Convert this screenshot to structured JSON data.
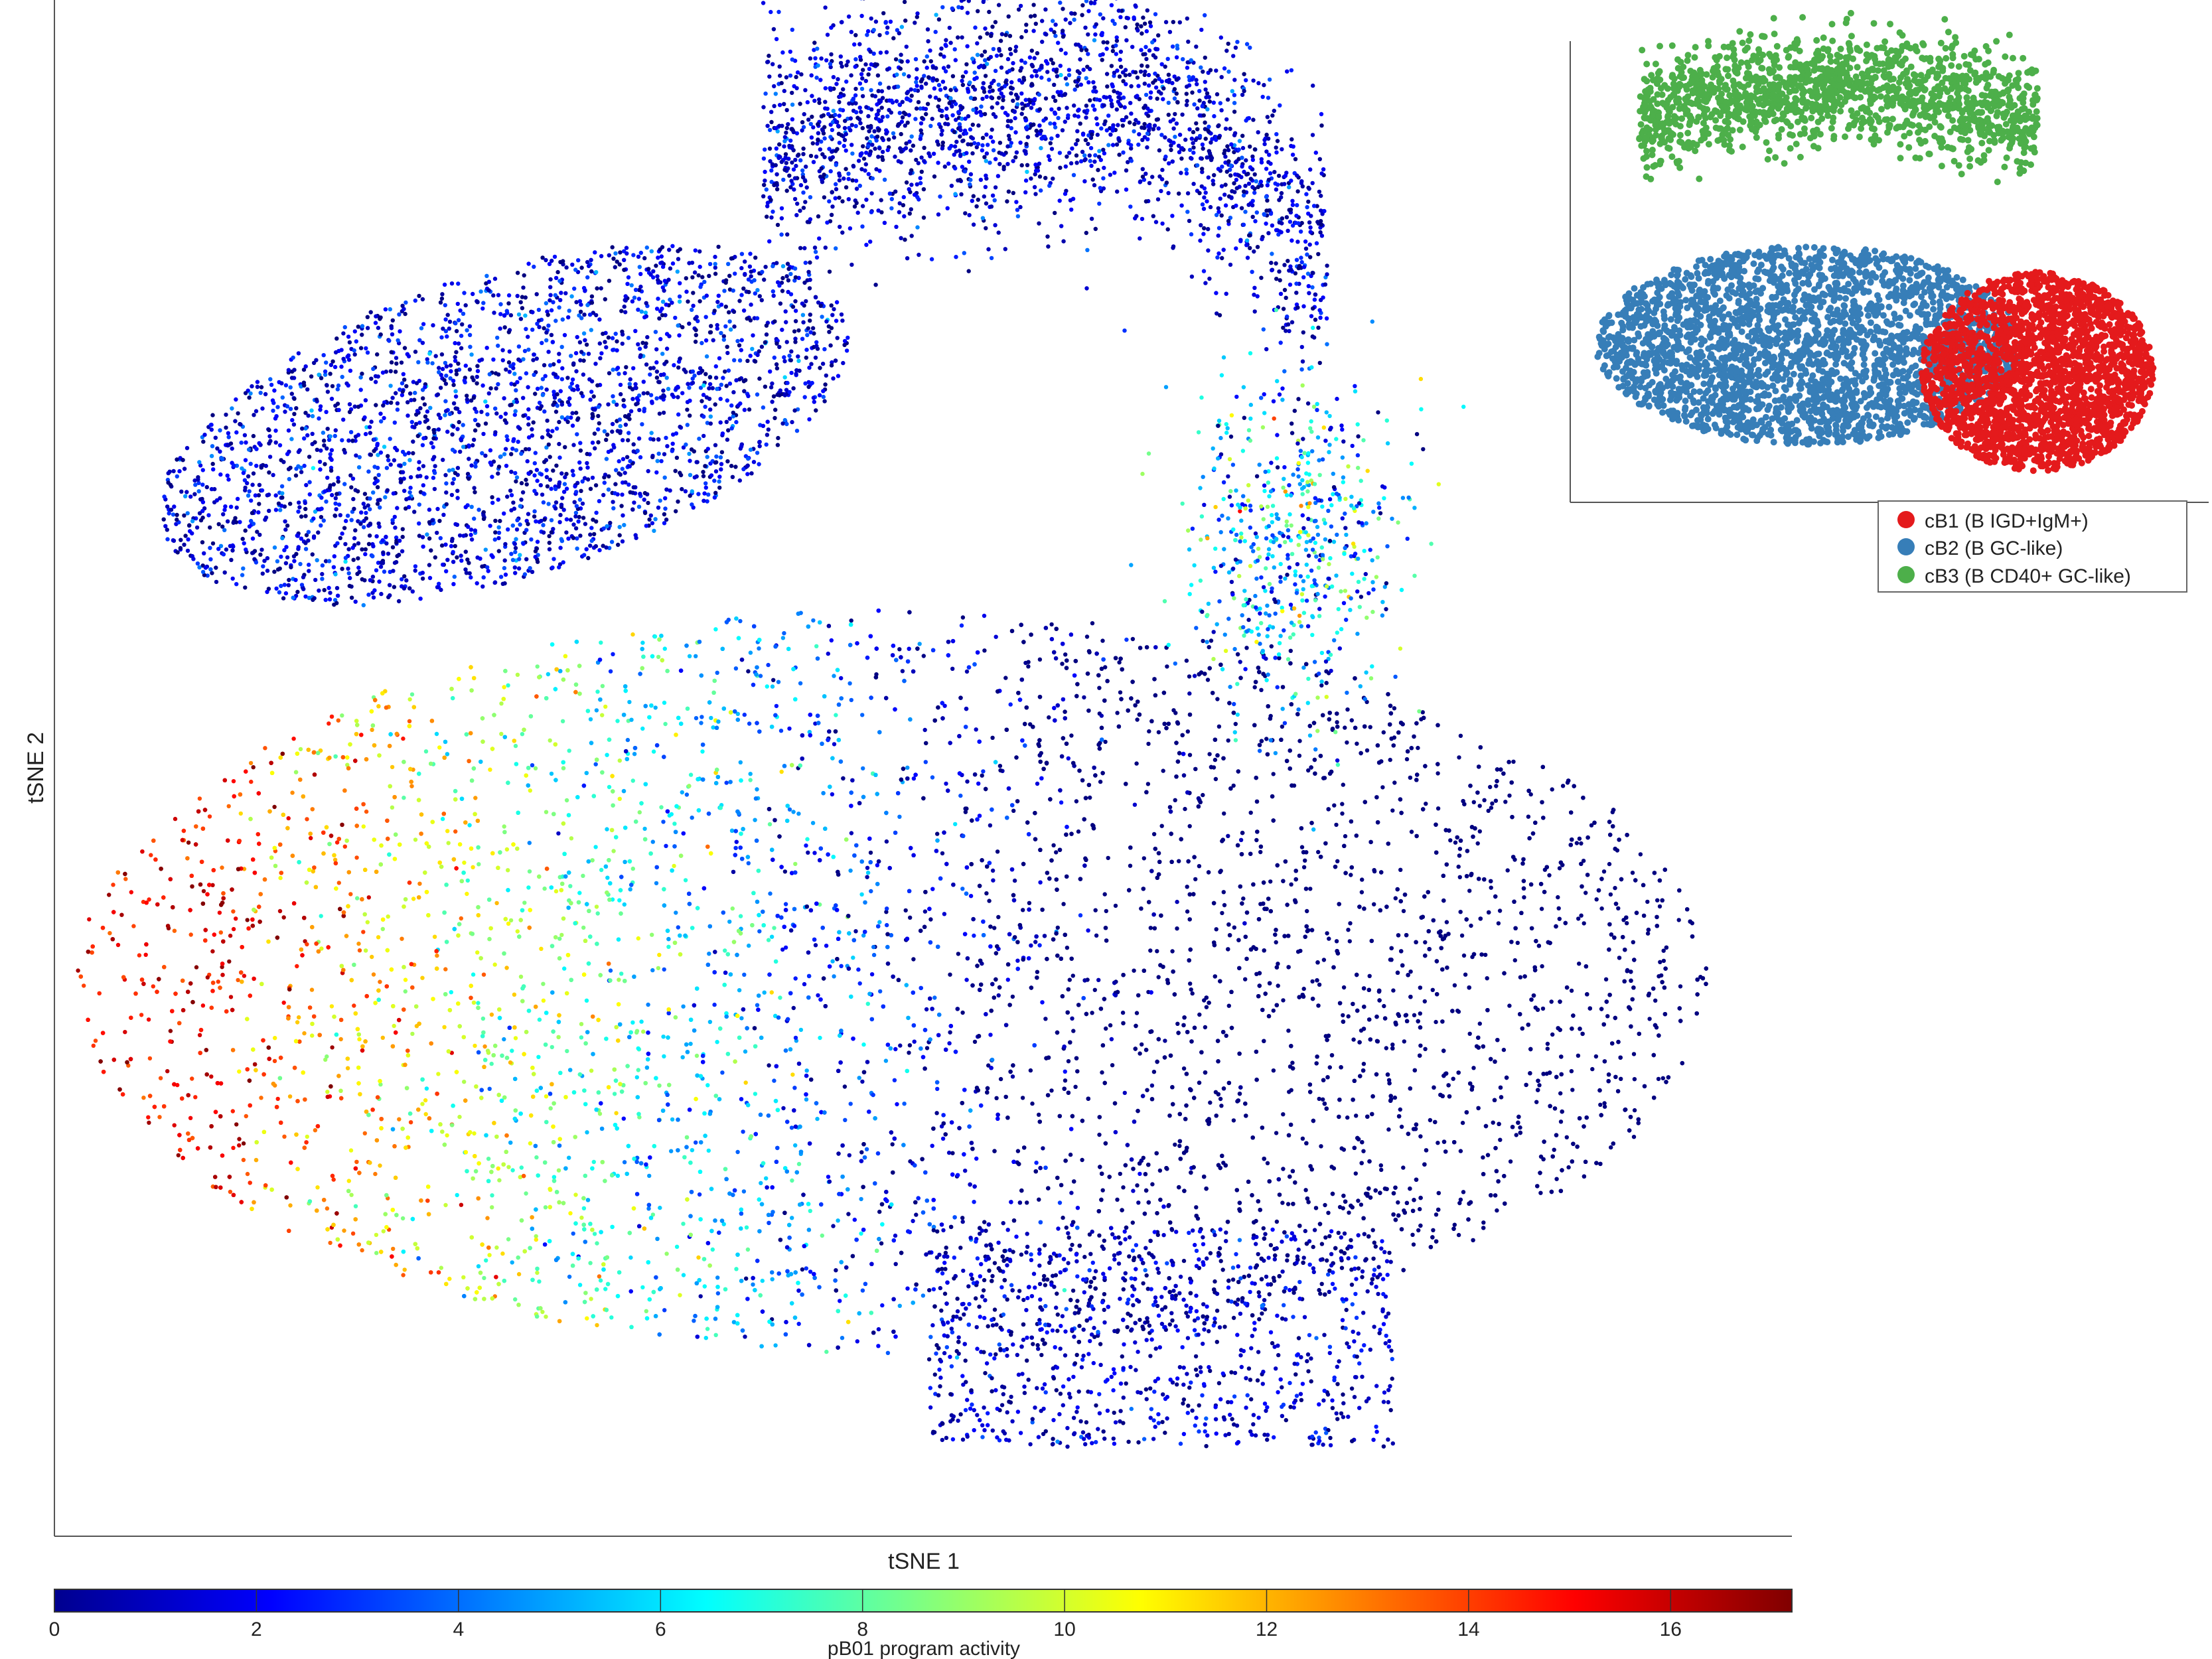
{
  "chart_data": [
    {
      "type": "scatter",
      "role": "main",
      "xlabel": "tSNE 1",
      "ylabel": "tSNE 2",
      "color_scale": {
        "colormap": "jet",
        "min": 0,
        "max": 17.2,
        "ticks": [
          0,
          2,
          4,
          6,
          8,
          10,
          12,
          14,
          16
        ],
        "label": "pB01 program activity"
      },
      "clusters": [
        {
          "region": "large-lower",
          "activity_gradient": "high (12-17) at left edge, decreasing to 0-2 at right"
        },
        {
          "region": "upper-left",
          "activity_typical": "0-3"
        },
        {
          "region": "upper-arch",
          "activity_typical": "0-3"
        },
        {
          "region": "right-arm",
          "activity_typical": "2-8"
        }
      ]
    },
    {
      "type": "scatter",
      "role": "inset",
      "legend_position": "below inset",
      "series": [
        {
          "name": "cB1 (B IGD+IgM+)",
          "color": "#e41a1c",
          "region": "right lobe"
        },
        {
          "name": "cB2 (B GC-like)",
          "color": "#377eb8",
          "region": "central body"
        },
        {
          "name": "cB3 (B CD40+ GC-like)",
          "color": "#4daf4a",
          "region": "top arch"
        }
      ]
    }
  ]
}
